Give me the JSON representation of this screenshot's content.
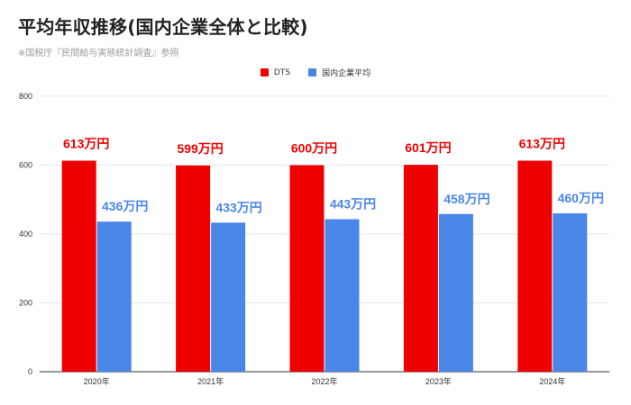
{
  "title": "平均年収推移(国内企業全体と比較)",
  "subtitle": "※国税庁『民間給与実態統計調査』参照",
  "colors": {
    "dts": "#ee0000",
    "domestic": "#4a86e8",
    "grid": "#e6e6e6",
    "axis": "#333333"
  },
  "chart_data": {
    "type": "bar",
    "categories": [
      "2020年",
      "2021年",
      "2022年",
      "2023年",
      "2024年"
    ],
    "series": [
      {
        "name": "DTS",
        "values": [
          613,
          599,
          600,
          601,
          613
        ],
        "labels": [
          "613万円",
          "599万円",
          "600万円",
          "601万円",
          "613万円"
        ]
      },
      {
        "name": "国内企業平均",
        "values": [
          436,
          433,
          443,
          458,
          460
        ],
        "labels": [
          "436万円",
          "433万円",
          "443万円",
          "458万円",
          "460万円"
        ]
      }
    ],
    "ylim": [
      0,
      800
    ],
    "yticks": [
      0,
      200,
      400,
      600,
      800
    ],
    "ytick_labels": [
      "0",
      "200",
      "400",
      "600",
      "800"
    ],
    "grid": true,
    "legend": "top-center"
  }
}
